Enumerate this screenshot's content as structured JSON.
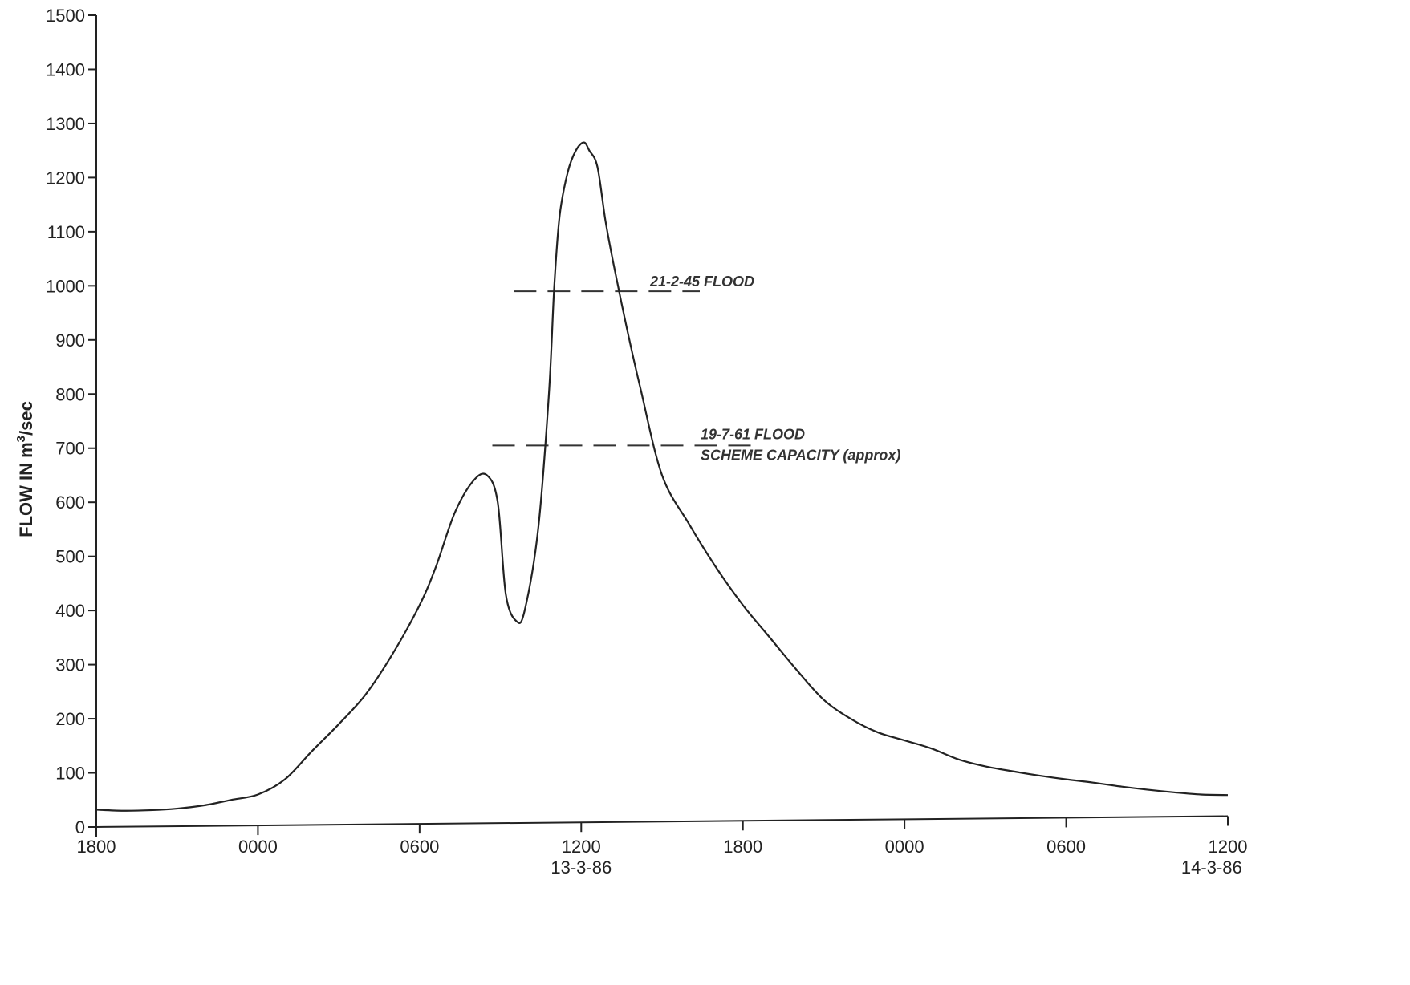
{
  "chart_data": {
    "type": "line",
    "title": "",
    "ylabel_parts": {
      "base": "FLOW IN m",
      "sup": "3",
      "rest": "/sec"
    },
    "ylim": [
      0,
      1500
    ],
    "yticks": [
      0,
      100,
      200,
      300,
      400,
      500,
      600,
      700,
      800,
      900,
      1000,
      1100,
      1200,
      1300,
      1400,
      1500
    ],
    "xlim_hours": [
      0,
      42
    ],
    "xticks": [
      {
        "h": 0,
        "label": "1800"
      },
      {
        "h": 6,
        "label": "0000"
      },
      {
        "h": 12,
        "label": "0600"
      },
      {
        "h": 18,
        "label": "1200"
      },
      {
        "h": 24,
        "label": "1800"
      },
      {
        "h": 30,
        "label": "0000"
      },
      {
        "h": 36,
        "label": "0600"
      },
      {
        "h": 42,
        "label": "1200"
      }
    ],
    "date_labels": [
      {
        "h": 18,
        "label": "13-3-86"
      },
      {
        "h": 41.4,
        "label": "14-3-86"
      }
    ],
    "series": [
      {
        "hours": [
          0,
          1,
          2,
          3,
          4,
          5,
          6,
          7,
          8,
          9,
          10,
          11,
          12,
          12.6,
          13.3,
          14,
          14.5,
          14.9,
          15.2,
          15.6,
          15.9,
          16.4,
          16.8,
          17.0,
          17.2,
          17.5,
          17.8,
          18.1,
          18.3,
          18.6,
          18.9,
          19.2,
          19.7,
          20.2,
          21,
          22,
          23,
          24,
          25,
          26,
          27,
          28,
          29,
          30,
          31,
          32,
          33,
          34,
          35,
          36,
          37,
          38,
          39,
          40,
          41,
          42
        ],
        "values": [
          32,
          30,
          31,
          34,
          40,
          50,
          60,
          88,
          140,
          190,
          245,
          320,
          410,
          480,
          580,
          640,
          650,
          600,
          430,
          380,
          400,
          550,
          800,
          1000,
          1130,
          1210,
          1250,
          1265,
          1250,
          1220,
          1120,
          1040,
          920,
          810,
          650,
          560,
          480,
          410,
          350,
          290,
          235,
          200,
          175,
          160,
          145,
          125,
          112,
          103,
          95,
          88,
          82,
          75,
          69,
          64,
          60,
          59
        ]
      }
    ],
    "reference_lines": [
      {
        "value": 990,
        "h_start": 15.5,
        "h_end": 22.4,
        "label": "21-2-45 FLOOD"
      },
      {
        "value": 705,
        "h_start": 14.7,
        "h_end": 24.3,
        "label": "19-7-61 FLOOD",
        "label2": "SCHEME CAPACITY (approx)"
      }
    ],
    "grid": false,
    "legend": "none"
  }
}
